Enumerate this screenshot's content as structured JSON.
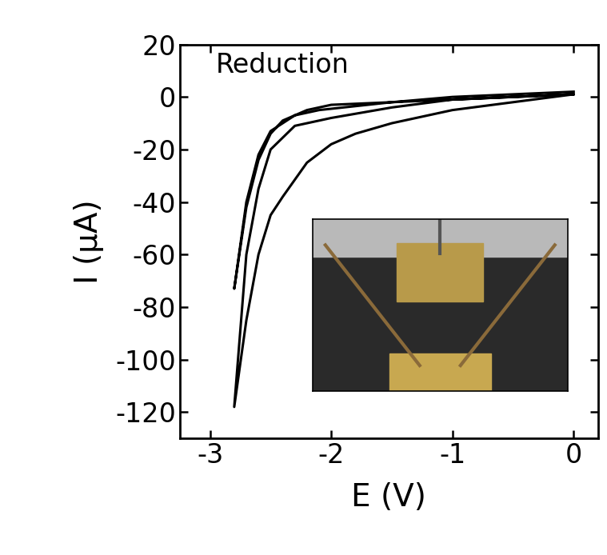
{
  "chart_data": {
    "type": "line",
    "annotation": "Reduction",
    "x_label": "E (V)",
    "y_label": "I (μA)",
    "xlim": [
      -3.25,
      0.2
    ],
    "xticks": [
      -3,
      -2,
      -1,
      0
    ],
    "ylim": [
      -130,
      20
    ],
    "yticks": [
      20,
      0,
      -20,
      -40,
      -60,
      -80,
      -100,
      -120
    ],
    "grid": false,
    "series": [
      {
        "color": "#000000",
        "x": [
          0,
          -0.5,
          -1.0,
          -1.5,
          -1.8,
          -2.0,
          -2.2,
          -2.4,
          -2.5,
          -2.6,
          -2.7,
          -2.8,
          -2.7,
          -2.6,
          -2.5,
          -2.3,
          -2.2,
          -2.0,
          -1.5,
          -1.0,
          -0.5,
          0,
          -0.5,
          -1.0,
          -1.5,
          -2.0,
          -2.2,
          -2.4,
          -2.5,
          -2.6,
          -2.7,
          -2.8,
          -2.7,
          -2.6,
          -2.5,
          -2.3,
          -2.1,
          -1.5,
          -1.0,
          -0.5,
          0
        ],
        "values": [
          1,
          -2,
          -5,
          -10,
          -14,
          -18,
          -25,
          -38,
          -45,
          -60,
          -85,
          -118,
          -60,
          -35,
          -20,
          -11,
          -10,
          -8,
          -4,
          -1,
          0,
          1,
          0,
          -1,
          -2,
          -3,
          -5,
          -9,
          -14,
          -24,
          -42,
          -73,
          -40,
          -22,
          -13,
          -7,
          -5,
          -2,
          0,
          1,
          2
        ]
      }
    ]
  }
}
